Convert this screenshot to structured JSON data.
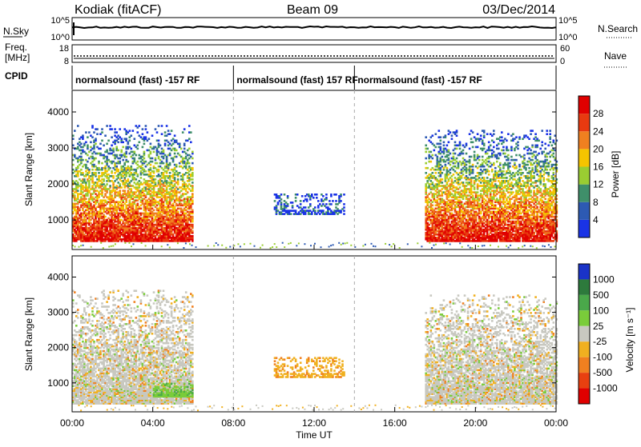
{
  "header": {
    "station": "Kodiak (fitACF)",
    "beam": "Beam 09",
    "date": "03/Dec/2014"
  },
  "top_panels": {
    "nsky_label": "N.Sky",
    "nsky_ticks": [
      "10^5",
      "10^0"
    ],
    "nsearch_label": "N.Search",
    "nsearch_ticks": [
      "10^5",
      "10^0"
    ],
    "freq_label": "Freq.",
    "freq_unit": "[MHz]",
    "freq_ticks": [
      "18",
      "8"
    ],
    "nave_label": "Nave",
    "nave_ticks": [
      "60",
      "0"
    ],
    "cpid_label": "CPID",
    "cpid_segments": [
      {
        "label": "normalsound (fast) -157 RF",
        "start_hour": 0,
        "end_hour": 8
      },
      {
        "label": "normalsound (fast) 157 RF",
        "start_hour": 8,
        "end_hour": 14
      },
      {
        "label": "normalsound (fast) -157 RF",
        "start_hour": 14,
        "end_hour": 24
      }
    ]
  },
  "chart_data": [
    {
      "type": "heatmap",
      "name": "power",
      "x_range_hours": [
        0,
        24
      ],
      "y_range_km": [
        180,
        4600
      ],
      "ylabel": "Slant Range [km]",
      "yticks": [
        1000,
        2000,
        3000,
        4000
      ],
      "colorbar_label": "Power [dB]",
      "colorbar_ticks": [
        "4",
        "8",
        "12",
        "16",
        "20",
        "24",
        "28"
      ],
      "colors": [
        "#1a33e6",
        "#2d5ab3",
        "#3f8f6a",
        "#9acd32",
        "#f5c400",
        "#f08020",
        "#e83a10",
        "#e00000"
      ],
      "regions": [
        {
          "t0": 0,
          "t1": 6.0,
          "r0": 400,
          "r1": 3600,
          "level": "mixed_high"
        },
        {
          "t0": 10.0,
          "t1": 13.5,
          "r0": 1150,
          "r1": 1700,
          "level": "low"
        },
        {
          "t0": 17.5,
          "t1": 24.0,
          "r0": 400,
          "r1": 3500,
          "level": "mixed_high"
        }
      ]
    },
    {
      "type": "heatmap",
      "name": "velocity",
      "x_range_hours": [
        0,
        24
      ],
      "y_range_km": [
        180,
        4600
      ],
      "ylabel": "Slant Range [km]",
      "yticks": [
        1000,
        2000,
        3000,
        4000
      ],
      "xlabel": "Time UT",
      "xticks": [
        "00:00",
        "04:00",
        "08:00",
        "12:00",
        "16:00",
        "20:00",
        "00:00"
      ],
      "colorbar_label": "Velocity [m s⁻¹]",
      "colorbar_ticks": [
        "1000",
        "500",
        "100",
        "25",
        "-25",
        "-100",
        "-500",
        "-1000"
      ],
      "colors": [
        "#1a33c8",
        "#2d7a3c",
        "#4aa84a",
        "#7acc3a",
        "#c8c8c0",
        "#f0b020",
        "#f08020",
        "#e84010",
        "#e00000"
      ],
      "regions": [
        {
          "t0": 0,
          "t1": 6.0,
          "r0": 400,
          "r1": 3600,
          "level": "near_zero"
        },
        {
          "t0": 4.0,
          "t1": 6.0,
          "r0": 600,
          "r1": 1000,
          "level": "positive"
        },
        {
          "t0": 10.0,
          "t1": 13.5,
          "r0": 1150,
          "r1": 1700,
          "level": "negative"
        },
        {
          "t0": 17.5,
          "t1": 24.0,
          "r0": 400,
          "r1": 3500,
          "level": "near_zero"
        }
      ]
    }
  ]
}
